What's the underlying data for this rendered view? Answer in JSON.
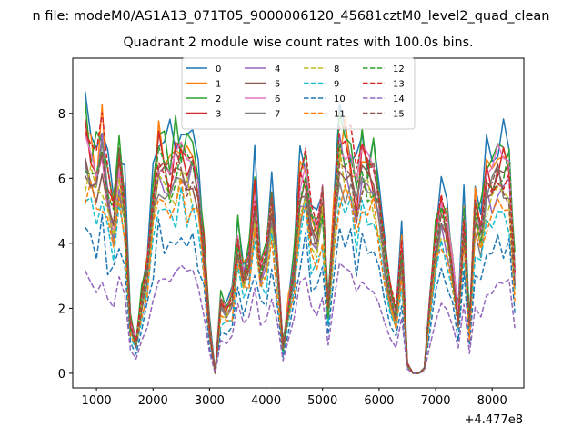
{
  "figure": {
    "suptitle": "n file: modeM0/AS1A13_071T05_9000006120_45681cztM0_level2_quad_clean",
    "offset_label": "+4.477e8"
  },
  "chart_data": {
    "type": "line",
    "title": "Quadrant 2 module wise count rates with 100.0s bins.",
    "xlabel": "",
    "ylabel": "",
    "xlim": [
      580,
      8560
    ],
    "ylim": [
      -0.45,
      9.7
    ],
    "xticks": [
      1000,
      2000,
      3000,
      4000,
      5000,
      6000,
      7000,
      8000
    ],
    "yticks": [
      0,
      2,
      4,
      6,
      8
    ],
    "grid": false,
    "legend_position": "upper center",
    "legend_columns": 4,
    "x": [
      800,
      900,
      1000,
      1100,
      1200,
      1300,
      1400,
      1500,
      1600,
      1700,
      1800,
      1900,
      2000,
      2100,
      2200,
      2300,
      2400,
      2500,
      2600,
      2700,
      2800,
      2900,
      3000,
      3100,
      3200,
      3300,
      3400,
      3500,
      3600,
      3700,
      3800,
      3900,
      4000,
      4100,
      4200,
      4300,
      4400,
      4500,
      4600,
      4700,
      4800,
      4900,
      5000,
      5100,
      5200,
      5300,
      5400,
      5500,
      5600,
      5700,
      5800,
      5900,
      6000,
      6100,
      6200,
      6300,
      6400,
      6500,
      6600,
      6700,
      6800,
      6900,
      7000,
      7100,
      7200,
      7300,
      7400,
      7500,
      7600,
      7700,
      7800,
      7900,
      8000,
      8100,
      8200,
      8300,
      8400
    ],
    "base_series": [
      1.0,
      0.92,
      0.85,
      0.97,
      0.78,
      0.66,
      0.92,
      0.72,
      0.21,
      0.13,
      0.31,
      0.45,
      0.73,
      0.93,
      0.92,
      0.85,
      0.9,
      0.93,
      0.88,
      0.91,
      0.78,
      0.54,
      0.2,
      0.0,
      0.3,
      0.26,
      0.32,
      0.58,
      0.42,
      0.49,
      0.77,
      0.45,
      0.5,
      0.69,
      0.46,
      0.11,
      0.29,
      0.47,
      0.79,
      0.86,
      0.63,
      0.56,
      0.74,
      0.27,
      0.66,
      0.98,
      0.92,
      0.9,
      0.75,
      0.88,
      0.86,
      0.84,
      0.71,
      0.5,
      0.33,
      0.24,
      0.51,
      0.04,
      0.0,
      0.0,
      0.02,
      0.3,
      0.55,
      0.71,
      0.62,
      0.45,
      0.24,
      0.67,
      0.2,
      0.7,
      0.61,
      0.84,
      0.83,
      0.9,
      0.85,
      0.87,
      0.42
    ],
    "series": [
      {
        "name": "0",
        "color": "#1f77b4",
        "dash": "solid",
        "scale": 9.25,
        "seed": 1
      },
      {
        "name": "1",
        "color": "#ff7f0e",
        "dash": "solid",
        "scale": 8.6,
        "seed": 2
      },
      {
        "name": "2",
        "color": "#2ca02c",
        "dash": "solid",
        "scale": 8.95,
        "seed": 3
      },
      {
        "name": "3",
        "color": "#d62728",
        "dash": "solid",
        "scale": 8.2,
        "seed": 4
      },
      {
        "name": "4",
        "color": "#9467bd",
        "dash": "solid",
        "scale": 7.6,
        "seed": 5
      },
      {
        "name": "5",
        "color": "#8c564b",
        "dash": "solid",
        "scale": 7.9,
        "seed": 6
      },
      {
        "name": "6",
        "color": "#e377c2",
        "dash": "solid",
        "scale": 8.0,
        "seed": 7
      },
      {
        "name": "7",
        "color": "#7f7f7f",
        "dash": "solid",
        "scale": 7.4,
        "seed": 8
      },
      {
        "name": "8",
        "color": "#bcbd22",
        "dash": "dashed",
        "scale": 7.2,
        "seed": 9
      },
      {
        "name": "9",
        "color": "#17becf",
        "dash": "dashed",
        "scale": 6.3,
        "seed": 10
      },
      {
        "name": "10",
        "color": "#1f77b4",
        "dash": "dashed",
        "scale": 5.1,
        "seed": 11
      },
      {
        "name": "11",
        "color": "#ff7f0e",
        "dash": "dashed",
        "scale": 6.6,
        "seed": 12
      },
      {
        "name": "12",
        "color": "#2ca02c",
        "dash": "dashed",
        "scale": 8.0,
        "seed": 13
      },
      {
        "name": "13",
        "color": "#d62728",
        "dash": "dashed",
        "scale": 8.5,
        "seed": 14
      },
      {
        "name": "14",
        "color": "#9467bd",
        "dash": "dashed",
        "scale": 3.7,
        "seed": 15
      },
      {
        "name": "15",
        "color": "#8c564b",
        "dash": "dashed",
        "scale": 7.8,
        "seed": 16
      }
    ]
  }
}
